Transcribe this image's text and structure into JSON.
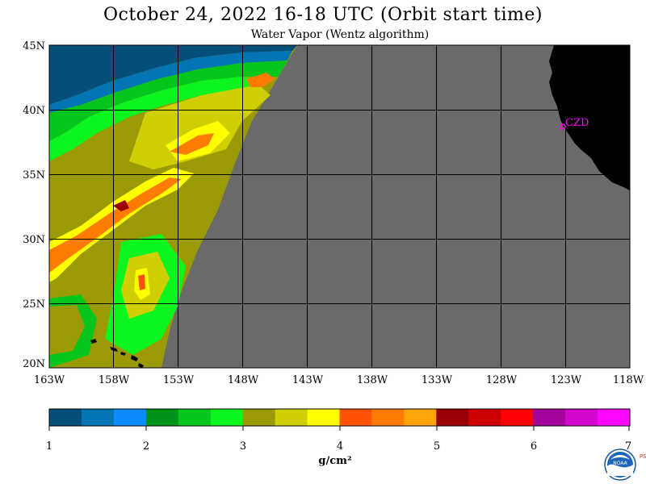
{
  "title": "October 24, 2022  16-18 UTC  (Orbit start time)",
  "subtitle": "Water Vapor (Wentz algorithm)",
  "lat_labels": [
    "45N",
    "40N",
    "35N",
    "30N",
    "25N",
    "20N"
  ],
  "lon_labels": [
    "163W",
    "158W",
    "153W",
    "148W",
    "143W",
    "138W",
    "133W",
    "128W",
    "123W",
    "118W"
  ],
  "station_label": "CZD",
  "colorbar": {
    "colors": [
      "#044f79",
      "#0474b5",
      "#0c8cff",
      "#00931a",
      "#06c61d",
      "#0cf521",
      "#9a9a04",
      "#cfcf06",
      "#fffd00",
      "#ff5204",
      "#ff7b04",
      "#ffa406",
      "#9a0004",
      "#cf0004",
      "#ff0004",
      "#a3059c",
      "#d206cc",
      "#ff06ff"
    ],
    "ticks": [
      "1",
      "2",
      "3",
      "4",
      "5",
      "6",
      "7"
    ],
    "units": "g/cm²"
  },
  "colors": {
    "no_data": "#6a6a6a",
    "land": "#000000",
    "station": "#ff00ff",
    "grid": "#000000"
  },
  "logo": {
    "name": "NOAA",
    "side_text": "PSL"
  }
}
